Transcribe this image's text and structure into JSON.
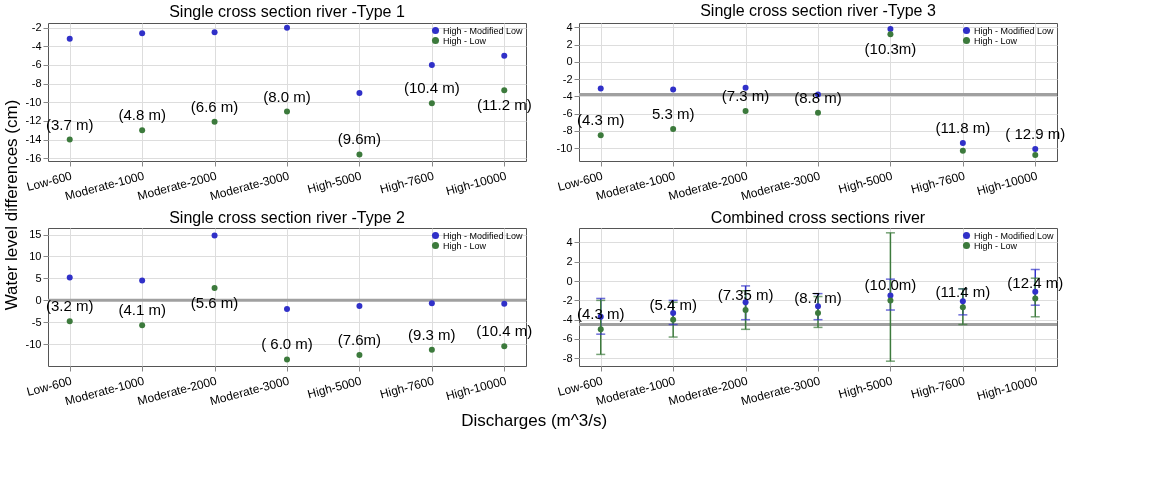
{
  "chart_data": [
    {
      "type": "scatter",
      "title": "Single cross section river -Type 1",
      "ylabel": "Water level  differences (cm)",
      "categories": [
        "Low-600",
        "Moderate-1000",
        "Moderate-2000",
        "Moderate-3000",
        "High-5000",
        "High-7600",
        "High-10000"
      ],
      "series": [
        {
          "name": "High - Modified Low",
          "color": "#3030c8",
          "values": [
            -3.2,
            -2.6,
            -2.5,
            -2.0,
            -9.0,
            -6.0,
            -5.0
          ]
        },
        {
          "name": "High - Low",
          "color": "#3c7a3c",
          "values": [
            -14.0,
            -13.0,
            -12.1,
            -11.0,
            -15.6,
            -10.1,
            -8.7
          ]
        }
      ],
      "ylim": [
        -16.3,
        -1.5
      ],
      "yticks": [
        -16,
        -14,
        -12,
        -10,
        -8,
        -6,
        -4,
        -2
      ],
      "grid": true,
      "legend": "top right",
      "marker": "circle",
      "annotations": [
        {
          "text": "(3.7 m)",
          "x": "Low-600",
          "y": -14.0
        },
        {
          "text": "(4.8 m)",
          "x": "Moderate-1000",
          "y": -13.0
        },
        {
          "text": "(6.6 m)",
          "x": "Moderate-2000",
          "y": -12.1
        },
        {
          "text": "(8.0 m)",
          "x": "Moderate-3000",
          "y": -11.0
        },
        {
          "text": "(9.6m)",
          "x": "High-5000",
          "y": -15.6
        },
        {
          "text": "(10.4 m)",
          "x": "High-7600",
          "y": -10.1
        },
        {
          "text": "(11.2 m)",
          "x": "High-10000",
          "y": -8.7
        }
      ]
    },
    {
      "type": "scatter",
      "title": "Single cross section river -Type 3",
      "categories": [
        "Low-600",
        "Moderate-1000",
        "Moderate-2000",
        "Moderate-3000",
        "High-5000",
        "High-7600",
        "High-10000"
      ],
      "series": [
        {
          "name": "High - Modified Low",
          "color": "#3030c8",
          "values": [
            -3.1,
            -3.2,
            -3.0,
            -3.8,
            3.8,
            -9.4,
            -10.1
          ]
        },
        {
          "name": "High - Low",
          "color": "#3c7a3c",
          "values": [
            -8.5,
            -7.8,
            -5.7,
            -5.9,
            3.2,
            -10.3,
            -10.8
          ]
        }
      ],
      "ylim": [
        -11.5,
        4.5
      ],
      "yticks": [
        -10,
        -8,
        -6,
        -4,
        -2,
        0,
        2,
        4
      ],
      "grid": true,
      "legend": "top right",
      "marker": "circle",
      "ref_lines": [
        {
          "axis": "y",
          "value": -3.8,
          "color": "#a0a0a0"
        }
      ],
      "annotations": [
        {
          "text": "(4.3 m)",
          "x": "Low-600",
          "y": -8.5
        },
        {
          "text": "5.3 m)",
          "x": "Moderate-1000",
          "y": -7.8
        },
        {
          "text": "(7.3 m)",
          "x": "Moderate-2000",
          "y": -5.7
        },
        {
          "text": "(8.8 m)",
          "x": "Moderate-3000",
          "y": -5.9
        },
        {
          "text": "(10.3m)",
          "x": "High-5000",
          "y": 3.2
        },
        {
          "text": "(11.8 m)",
          "x": "High-7600",
          "y": -9.4
        },
        {
          "text": "( 12.9 m)",
          "x": "High-10000",
          "y": -10.1
        }
      ]
    },
    {
      "type": "scatter",
      "title": "Single cross section river -Type 2",
      "categories": [
        "Low-600",
        "Moderate-1000",
        "Moderate-2000",
        "Moderate-3000",
        "High-5000",
        "High-7600",
        "High-10000"
      ],
      "series": [
        {
          "name": "High - Modified Low",
          "color": "#3030c8",
          "values": [
            5.2,
            4.5,
            14.8,
            -2.0,
            -1.3,
            -0.7,
            -0.8
          ]
        },
        {
          "name": "High - Low",
          "color": "#3c7a3c",
          "values": [
            -4.8,
            -5.7,
            2.8,
            -13.5,
            -12.5,
            -11.3,
            -10.5
          ]
        }
      ],
      "ylim": [
        -15,
        16.5
      ],
      "yticks": [
        -10,
        -5,
        0,
        5,
        10,
        15
      ],
      "grid": true,
      "legend": "top right",
      "marker": "circle",
      "ref_lines": [
        {
          "axis": "y",
          "value": 0,
          "color": "#a0a0a0"
        }
      ],
      "annotations": [
        {
          "text": "(3.2 m)",
          "x": "Low-600",
          "y": -4.8
        },
        {
          "text": "(4.1 m)",
          "x": "Moderate-1000",
          "y": -5.7
        },
        {
          "text": "(5.6 m)",
          "x": "Moderate-2000",
          "y": 2.8
        },
        {
          "text": "( 6.0 m)",
          "x": "Moderate-3000",
          "y": -13.5
        },
        {
          "text": "(7.6m)",
          "x": "High-5000",
          "y": -12.5
        },
        {
          "text": "(9.3 m)",
          "x": "High-7600",
          "y": -11.3
        },
        {
          "text": "(10.4 m)",
          "x": "High-10000",
          "y": -10.5
        }
      ]
    },
    {
      "type": "scatter",
      "title": "Combined cross sections river",
      "xlabel": "Discharges (m^3/s)",
      "categories": [
        "Low-600",
        "Moderate-1000",
        "Moderate-2000",
        "Moderate-3000",
        "High-5000",
        "High-7600",
        "High-10000"
      ],
      "series": [
        {
          "name": "High - Modified Low",
          "color": "#3030c8",
          "values": [
            -3.7,
            -3.3,
            -2.2,
            -2.6,
            -1.5,
            -2.1,
            -1.1
          ],
          "errors": [
            [
              -5.5,
              -1.8
            ],
            [
              -4.5,
              -2.0
            ],
            [
              -4.0,
              -0.5
            ],
            [
              -4.0,
              -1.3
            ],
            [
              -3.0,
              0.2
            ],
            [
              -3.5,
              -0.8
            ],
            [
              -2.5,
              1.2
            ]
          ]
        },
        {
          "name": "High - Low",
          "color": "#3c7a3c",
          "values": [
            -5.0,
            -4.0,
            -3.0,
            -3.3,
            -2.0,
            -2.7,
            -1.8
          ],
          "errors": [
            [
              -7.6,
              -2.0
            ],
            [
              -5.8,
              -2.2
            ],
            [
              -5.0,
              -1.0
            ],
            [
              -4.8,
              -1.6
            ],
            [
              -8.3,
              5.0
            ],
            [
              -4.5,
              -0.8
            ],
            [
              -3.7,
              0.3
            ]
          ]
        }
      ],
      "ylim": [
        -8.8,
        5.5
      ],
      "yticks": [
        -8,
        -6,
        -4,
        -2,
        0,
        2,
        4
      ],
      "grid": true,
      "legend": "top right",
      "marker": "circle",
      "ref_lines": [
        {
          "axis": "y",
          "value": -4.5,
          "color": "#a0a0a0"
        }
      ],
      "annotations": [
        {
          "text": "(4.3 m)",
          "x": "Low-600",
          "y": -5.0
        },
        {
          "text": "(5.4 m)",
          "x": "Moderate-1000",
          "y": -4.0
        },
        {
          "text": "(7.35 m)",
          "x": "Moderate-2000",
          "y": -3.0
        },
        {
          "text": "(8.7 m)",
          "x": "Moderate-3000",
          "y": -3.3
        },
        {
          "text": "(10.0m)",
          "x": "High-5000",
          "y": -2.0
        },
        {
          "text": "(11.4 m)",
          "x": "High-7600",
          "y": -2.7
        },
        {
          "text": "(12.4 m)",
          "x": "High-10000",
          "y": -1.8
        }
      ]
    }
  ]
}
